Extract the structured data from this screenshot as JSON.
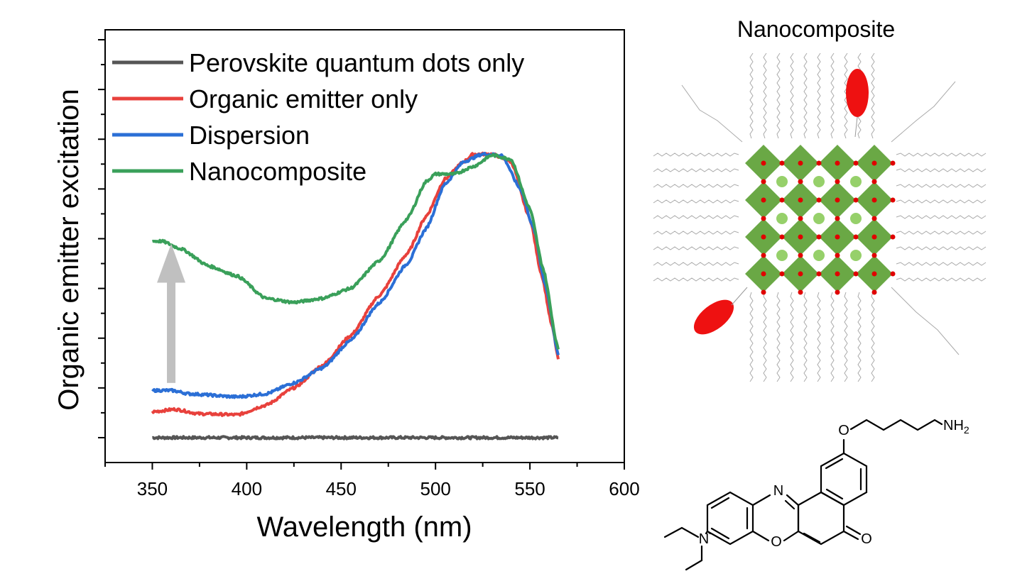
{
  "chart_data": {
    "type": "line",
    "title": "",
    "xlabel": "Wavelength (nm)",
    "ylabel": "Organic emitter excitation",
    "xlim": [
      325,
      600
    ],
    "ylim": [
      -0.5,
      8.2
    ],
    "xticks": [
      350,
      400,
      450,
      500,
      550,
      600
    ],
    "y_tick_labels": "none",
    "grid": false,
    "legend_position": "top-left",
    "series": [
      {
        "name": "Perovskite quantum dots only",
        "color": "#555555",
        "x": [
          350,
          400,
          450,
          500,
          550,
          565
        ],
        "y": [
          0,
          0,
          0,
          0,
          0,
          0
        ]
      },
      {
        "name": "Organic emitter only",
        "color": "#e8413c",
        "x": [
          350,
          362,
          375,
          395,
          410,
          425,
          440,
          455,
          470,
          485,
          495,
          505,
          515,
          520,
          530,
          540,
          550,
          556,
          562,
          565
        ],
        "y": [
          0.52,
          0.57,
          0.48,
          0.46,
          0.65,
          1.0,
          1.45,
          2.05,
          2.85,
          3.7,
          4.45,
          5.2,
          5.55,
          5.7,
          5.7,
          5.55,
          4.4,
          3.3,
          2.2,
          1.58
        ]
      },
      {
        "name": "Dispersion",
        "color": "#2b6fd6",
        "x": [
          350,
          360,
          370,
          395,
          410,
          425,
          440,
          455,
          470,
          485,
          495,
          505,
          515,
          525,
          535,
          545,
          552,
          558,
          565
        ],
        "y": [
          0.95,
          0.95,
          0.88,
          0.82,
          0.88,
          1.1,
          1.4,
          1.95,
          2.7,
          3.5,
          4.2,
          5.1,
          5.55,
          5.7,
          5.68,
          5.0,
          4.2,
          3.1,
          1.68
        ]
      },
      {
        "name": "Nanocomposite",
        "color": "#3aa05a",
        "x": [
          350,
          355,
          365,
          380,
          395,
          410,
          425,
          440,
          455,
          470,
          485,
          495,
          500,
          510,
          520,
          530,
          540,
          550,
          557,
          565
        ],
        "y": [
          3.95,
          3.95,
          3.8,
          3.45,
          3.25,
          2.8,
          2.72,
          2.8,
          3.0,
          3.55,
          4.4,
          5.15,
          5.3,
          5.3,
          5.45,
          5.68,
          5.6,
          4.6,
          3.4,
          1.78
        ]
      }
    ],
    "annotations": [
      {
        "type": "arrow",
        "direction": "up",
        "x": 360,
        "y_from": 1.1,
        "y_to": 3.9,
        "color": "#c0c0c0"
      }
    ]
  },
  "schematic": {
    "title": "Nanocomposite",
    "colors": {
      "octahedron": "#6aa845",
      "a_site": "#96d06a",
      "halide": "#e00000",
      "emitter": "#ee1111",
      "ligand": "#aaaaaa"
    }
  },
  "molecule": {
    "labels": {
      "ether_oxygen": "O",
      "amine": "NH",
      "amine_subscript": "2",
      "ring_nitrogen": "N",
      "ring_oxygen": "O",
      "carbonyl_oxygen": "O",
      "diethylamino_nitrogen": "N"
    }
  }
}
